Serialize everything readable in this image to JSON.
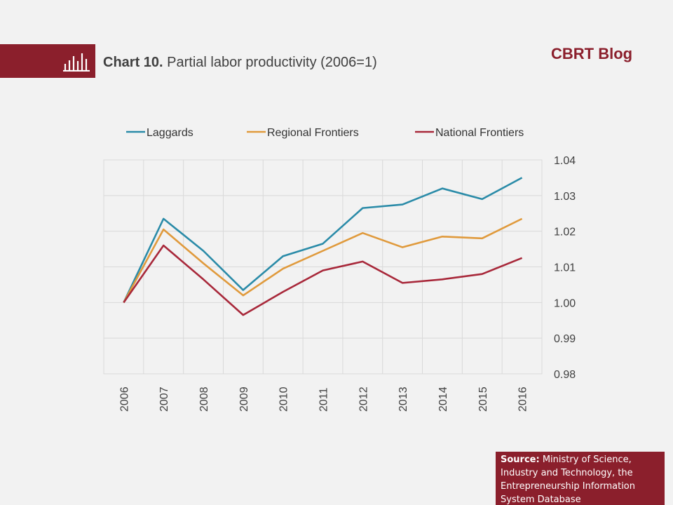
{
  "header": {
    "chart_number": "Chart 10.",
    "chart_title": "Partial labor productivity (2006=1)",
    "blog_label": "CBRT Blog"
  },
  "source": {
    "label": "Source:",
    "text": "Ministry of Science, Industry and Technology, the Entrepreneurship Information System Database"
  },
  "colors": {
    "brand": "#8b1f2c",
    "laggards": "#2a8ba8",
    "regional": "#e09a3c",
    "national": "#a8283a"
  },
  "chart_data": {
    "type": "line",
    "x": [
      "2006",
      "2007",
      "2008",
      "2009",
      "2010",
      "2011",
      "2012",
      "2013",
      "2014",
      "2015",
      "2016"
    ],
    "ylim": [
      0.98,
      1.04
    ],
    "yticks": [
      "0.98",
      "0.99",
      "1.00",
      "1.01",
      "1.02",
      "1.03",
      "1.04"
    ],
    "y_axis_side": "right",
    "grid": true,
    "legend_position": "top",
    "series": [
      {
        "name": "Laggards",
        "color": "#2a8ba8",
        "values": [
          1.0,
          1.0235,
          1.0145,
          1.0035,
          1.013,
          1.0165,
          1.0265,
          1.0275,
          1.032,
          1.029,
          1.035
        ]
      },
      {
        "name": "Regional Frontiers",
        "color": "#e09a3c",
        "values": [
          1.0,
          1.0205,
          1.011,
          1.002,
          1.0095,
          1.0145,
          1.0195,
          1.0155,
          1.0185,
          1.018,
          1.0235
        ]
      },
      {
        "name": "National Frontiers",
        "color": "#a8283a",
        "values": [
          1.0,
          1.016,
          1.0065,
          0.9965,
          1.003,
          1.009,
          1.0115,
          1.0055,
          1.0065,
          1.008,
          1.0125
        ]
      }
    ]
  }
}
